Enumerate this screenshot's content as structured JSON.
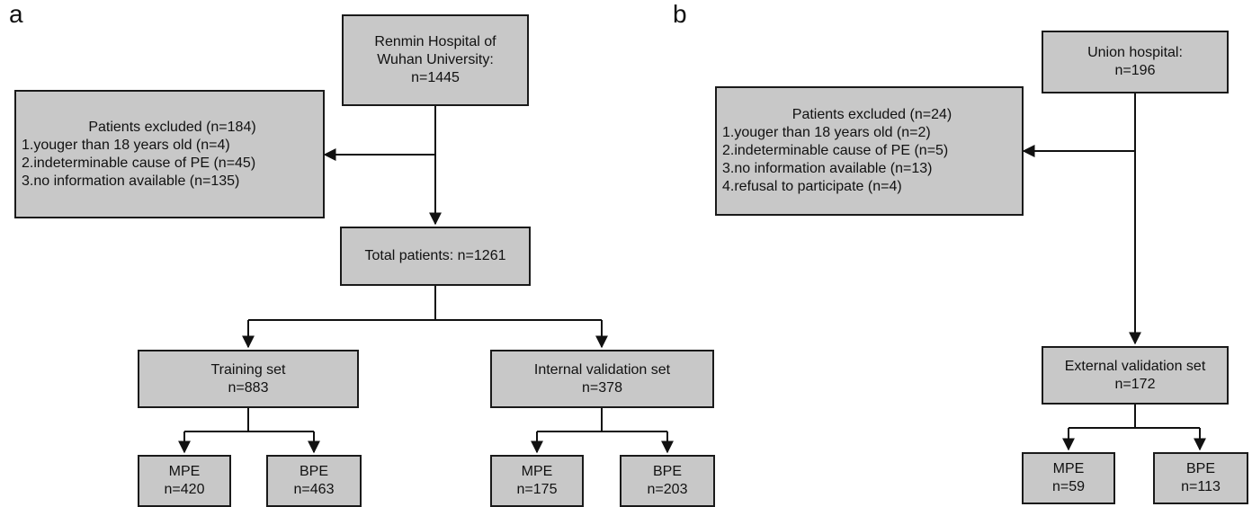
{
  "panel_a": {
    "letter": "a",
    "source": {
      "line1": "Renmin Hospital of",
      "line2": "Wuhan University:",
      "line3": "n=1445"
    },
    "excluded": {
      "title": "Patients excluded (n=184)",
      "items": [
        "1.youger than 18 years old (n=4)",
        "2.indeterminable cause of PE (n=45)",
        "3.no information available (n=135)"
      ]
    },
    "total": {
      "label": "Total patients: n=1261"
    },
    "training": {
      "label": "Training set",
      "count": "n=883"
    },
    "internal": {
      "label": "Internal validation set",
      "count": "n=378"
    },
    "train_mpe": {
      "label": "MPE",
      "count": "n=420"
    },
    "train_bpe": {
      "label": "BPE",
      "count": "n=463"
    },
    "int_mpe": {
      "label": "MPE",
      "count": "n=175"
    },
    "int_bpe": {
      "label": "BPE",
      "count": "n=203"
    }
  },
  "panel_b": {
    "letter": "b",
    "source": {
      "line1": "Union hospital:",
      "line2": "n=196"
    },
    "excluded": {
      "title": "Patients excluded (n=24)",
      "items": [
        "1.youger than 18 years old (n=2)",
        "2.indeterminable cause of PE (n=5)",
        "3.no information available (n=13)",
        "4.refusal to participate (n=4)"
      ]
    },
    "external": {
      "label": "External validation set",
      "count": "n=172"
    },
    "ext_mpe": {
      "label": "MPE",
      "count": "n=59"
    },
    "ext_bpe": {
      "label": "BPE",
      "count": "n=113"
    }
  }
}
